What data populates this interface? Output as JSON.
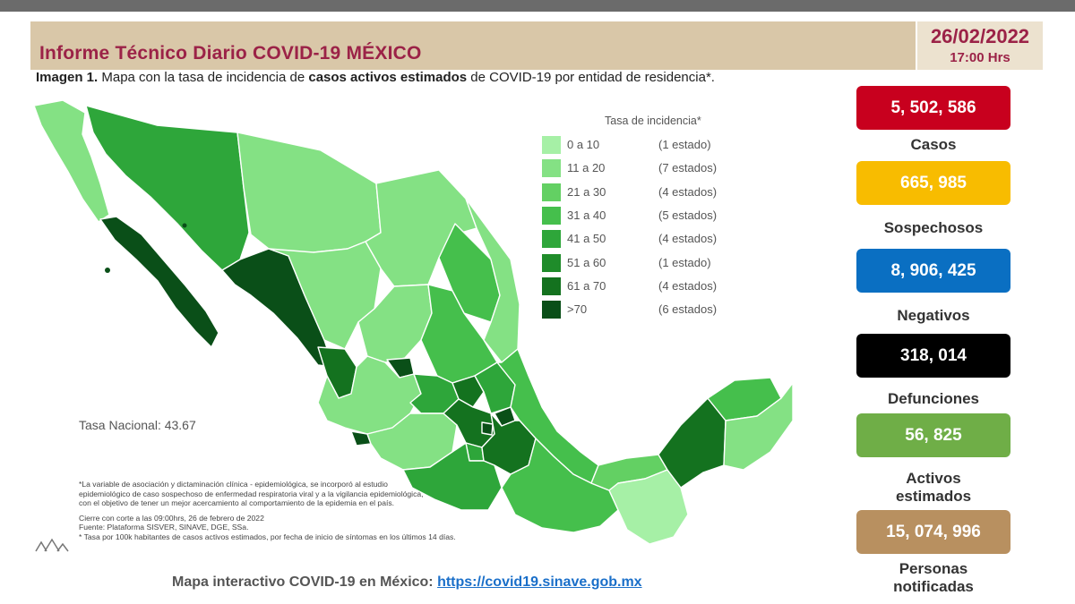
{
  "header": {
    "title": "Informe Técnico Diario COVID-19 MÉXICO",
    "date": "26/02/2022",
    "time": "17:00 Hrs"
  },
  "subtitle": {
    "prefix": "Imagen 1.",
    "part1": " Mapa con la tasa de incidencia de ",
    "bold": "casos activos estimados",
    "part2": " de COVID-19 por entidad de residencia*."
  },
  "legend": {
    "title": "Tasa de incidencia*",
    "items": [
      {
        "range": "0 a  10",
        "count": "(1 estado)",
        "color": "#a6f0a6"
      },
      {
        "range": "11 a  20",
        "count": "(7 estados)",
        "color": "#84e184"
      },
      {
        "range": "21 a  30",
        "count": "(4 estados)",
        "color": "#63d063"
      },
      {
        "range": "31 a  40",
        "count": "(5 estados)",
        "color": "#45bf4c"
      },
      {
        "range": "41 a  50",
        "count": "(4 estados)",
        "color": "#2ea63a"
      },
      {
        "range": "51 a  60",
        "count": "(1 estado)",
        "color": "#1f8c2a"
      },
      {
        "range": "61 a  70",
        "count": "(4 estados)",
        "color": "#14721f"
      },
      {
        "range": ">70",
        "count": "(6 estados)",
        "color": "#0a4f18"
      }
    ]
  },
  "map": {
    "tasa_nacional": "Tasa Nacional: 43.67"
  },
  "notes": {
    "line1": "*La variable de asociación y dictaminación clínica - epidemiológica, se incorporó al estudio",
    "line2": "epidemiológico de caso sospechoso de enfermedad respiratoria viral y a la vigilancia epidemiológica,",
    "line3": "con el objetivo de tener un mejor acercamiento al comportamiento de la epidemia en el país.",
    "line4": "Cierre con corte a las 09:00hrs, 26 de febrero de 2022",
    "line5": "Fuente: Plataforma SISVER, SINAVE, DGE, SSa.",
    "line6": "* Tasa por 100k habitantes de casos activos estimados, por fecha de inicio de síntomas en los últimos 14 días."
  },
  "footer": {
    "label": "Mapa interactivo COVID-19 en México: ",
    "link": "https://covid19.sinave.gob.mx"
  },
  "stats": [
    {
      "value": "5, 502, 586",
      "label": "Casos",
      "color": "#c8001e"
    },
    {
      "value": "665, 985",
      "label": "Sospechosos",
      "color": "#f8bc00"
    },
    {
      "value": "8, 906, 425",
      "label": "Negativos",
      "color": "#0a6fc2"
    },
    {
      "value": "318, 014",
      "label": "Defunciones",
      "color": "#000000"
    },
    {
      "value": "56, 825",
      "label": "Activos estimados",
      "color": "#6fae47"
    },
    {
      "value": "15, 074, 996",
      "label": "Personas notificadas",
      "color": "#b89060"
    }
  ]
}
